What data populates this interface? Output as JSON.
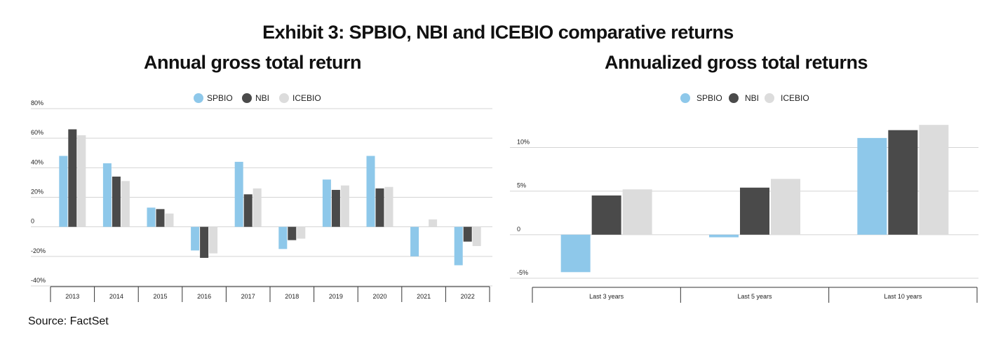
{
  "title": "Exhibit 3: SPBIO, NBI and ICEBIO comparative returns",
  "source": "Source: FactSet",
  "colors": {
    "SPBIO": "#8ec8ea",
    "NBI": "#4a4a4a",
    "ICEBIO": "#dcdcdc"
  },
  "chart_data": [
    {
      "type": "bar",
      "title": "Annual gross total return",
      "categories": [
        "2013",
        "2014",
        "2015",
        "2016",
        "2017",
        "2018",
        "2019",
        "2020",
        "2021",
        "2022"
      ],
      "series": [
        {
          "name": "SPBIO",
          "values": [
            48,
            43,
            13,
            -16,
            44,
            -15,
            32,
            48,
            -20,
            -26
          ]
        },
        {
          "name": "NBI",
          "values": [
            66,
            34,
            12,
            -21,
            22,
            -9,
            25,
            26,
            0,
            -10
          ]
        },
        {
          "name": "ICEBIO",
          "values": [
            62,
            31,
            9,
            -18,
            26,
            -8,
            28,
            27,
            5,
            -13
          ]
        }
      ],
      "ylim": [
        -40,
        80
      ],
      "yticks": [
        80,
        60,
        40,
        20,
        0,
        -20,
        -40
      ],
      "ytick_labels": [
        "80%",
        "60%",
        "40%",
        "20%",
        "0",
        "-20%",
        "-40%"
      ],
      "legend": "top-center",
      "grid": true
    },
    {
      "type": "bar",
      "title": "Annualized gross total returns",
      "categories": [
        "Last 3 years",
        "Last 5 years",
        "Last 10 years"
      ],
      "series": [
        {
          "name": "SPBIO",
          "values": [
            -4.3,
            -0.3,
            11.1
          ]
        },
        {
          "name": "NBI",
          "values": [
            4.5,
            5.4,
            12.0
          ]
        },
        {
          "name": "ICEBIO",
          "values": [
            5.2,
            6.4,
            12.6
          ]
        }
      ],
      "ylim": [
        -5,
        12.7
      ],
      "yticks": [
        10,
        5,
        0,
        -5
      ],
      "ytick_labels": [
        "10%",
        "5%",
        "0",
        "-5%"
      ],
      "legend": "top-center",
      "grid": true
    }
  ]
}
